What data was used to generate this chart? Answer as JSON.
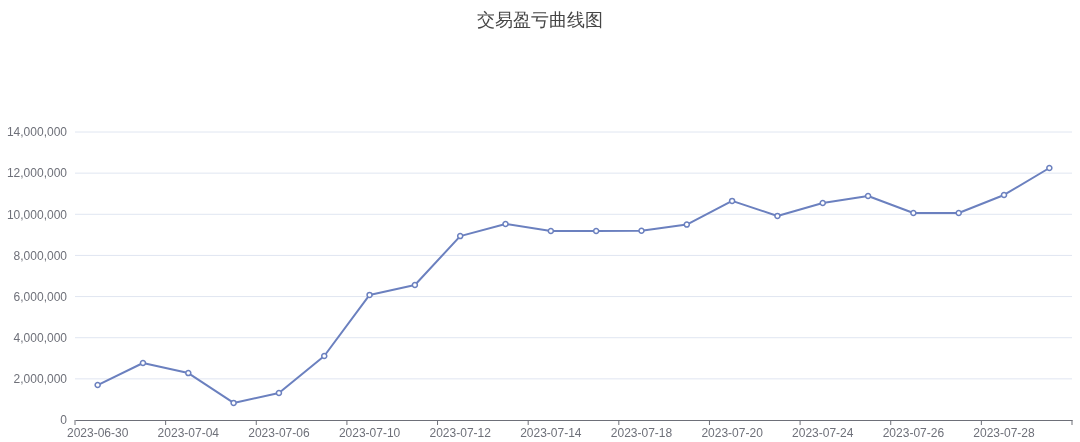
{
  "chart_data": {
    "type": "line",
    "title": "交易盈亏曲线图",
    "categories": [
      "2023-06-30",
      null,
      "2023-07-04",
      null,
      "2023-07-06",
      null,
      "2023-07-10",
      null,
      "2023-07-12",
      null,
      "2023-07-14",
      null,
      "2023-07-18",
      null,
      "2023-07-20",
      null,
      "2023-07-24",
      null,
      "2023-07-26",
      null,
      "2023-07-28",
      null
    ],
    "series": [
      {
        "color": "#6b80bf",
        "values": [
          1700000,
          2770000,
          2280000,
          830000,
          1310000,
          3110000,
          6080000,
          6560000,
          8940000,
          9530000,
          9190000,
          9190000,
          9200000,
          9500000,
          10650000,
          9920000,
          10550000,
          10890000,
          10060000,
          10060000,
          10940000,
          12250000
        ]
      }
    ],
    "ylim": [
      0,
      14000000
    ],
    "yticks": [
      {
        "value": 0,
        "label": "0"
      },
      {
        "value": 2000000,
        "label": "2,000,000"
      },
      {
        "value": 4000000,
        "label": "4,000,000"
      },
      {
        "value": 6000000,
        "label": "6,000,000"
      },
      {
        "value": 8000000,
        "label": "8,000,000"
      },
      {
        "value": 10000000,
        "label": "10,000,000"
      },
      {
        "value": 12000000,
        "label": "12,000,000"
      },
      {
        "value": 14000000,
        "label": "14,000,000"
      }
    ],
    "grid": "y",
    "marker": "circle",
    "line_style": "solid"
  }
}
